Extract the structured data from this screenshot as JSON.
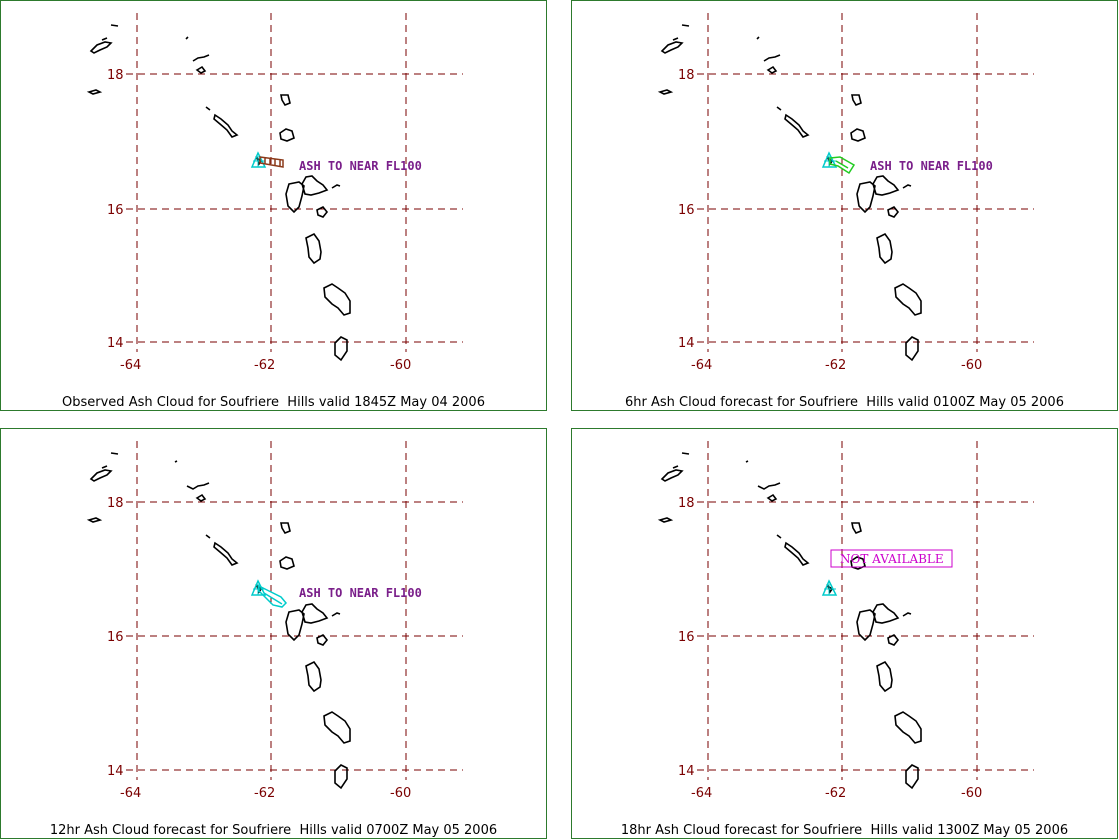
{
  "map": {
    "lat_ticks": [
      18,
      16,
      14
    ],
    "lon_ticks": [
      -64,
      -62,
      -60
    ],
    "lat_labels": [
      "18",
      "16",
      "14"
    ],
    "lon_labels": [
      "-64",
      "-62",
      "-60"
    ],
    "colors": {
      "grid": "#7a0000",
      "volcano": "#00cccc",
      "coast": "#000000",
      "border": "#2d7a2d"
    }
  },
  "panels": [
    {
      "caption": "Observed Ash Cloud for Soufriere  Hills valid 1845Z May 04 2006",
      "note": "ASH TO NEAR FL100",
      "note_style": "ash",
      "cloud_color": "#8b3a1a"
    },
    {
      "caption": "6hr Ash Cloud forecast for Soufriere  Hills valid 0100Z May 05 2006",
      "note": "ASH TO NEAR FL100",
      "note_style": "ash",
      "cloud_color": "#22cc22"
    },
    {
      "caption": "12hr Ash Cloud forecast for Soufriere  Hills valid 0700Z May 05 2006",
      "note": "ASH TO NEAR FL100",
      "note_style": "ash",
      "cloud_color": "#00cccc"
    },
    {
      "caption": "18hr Ash Cloud forecast for Soufriere  Hills valid 1300Z May 05 2006",
      "note": "NOT AVAILABLE",
      "note_style": "na",
      "cloud_color": ""
    }
  ]
}
